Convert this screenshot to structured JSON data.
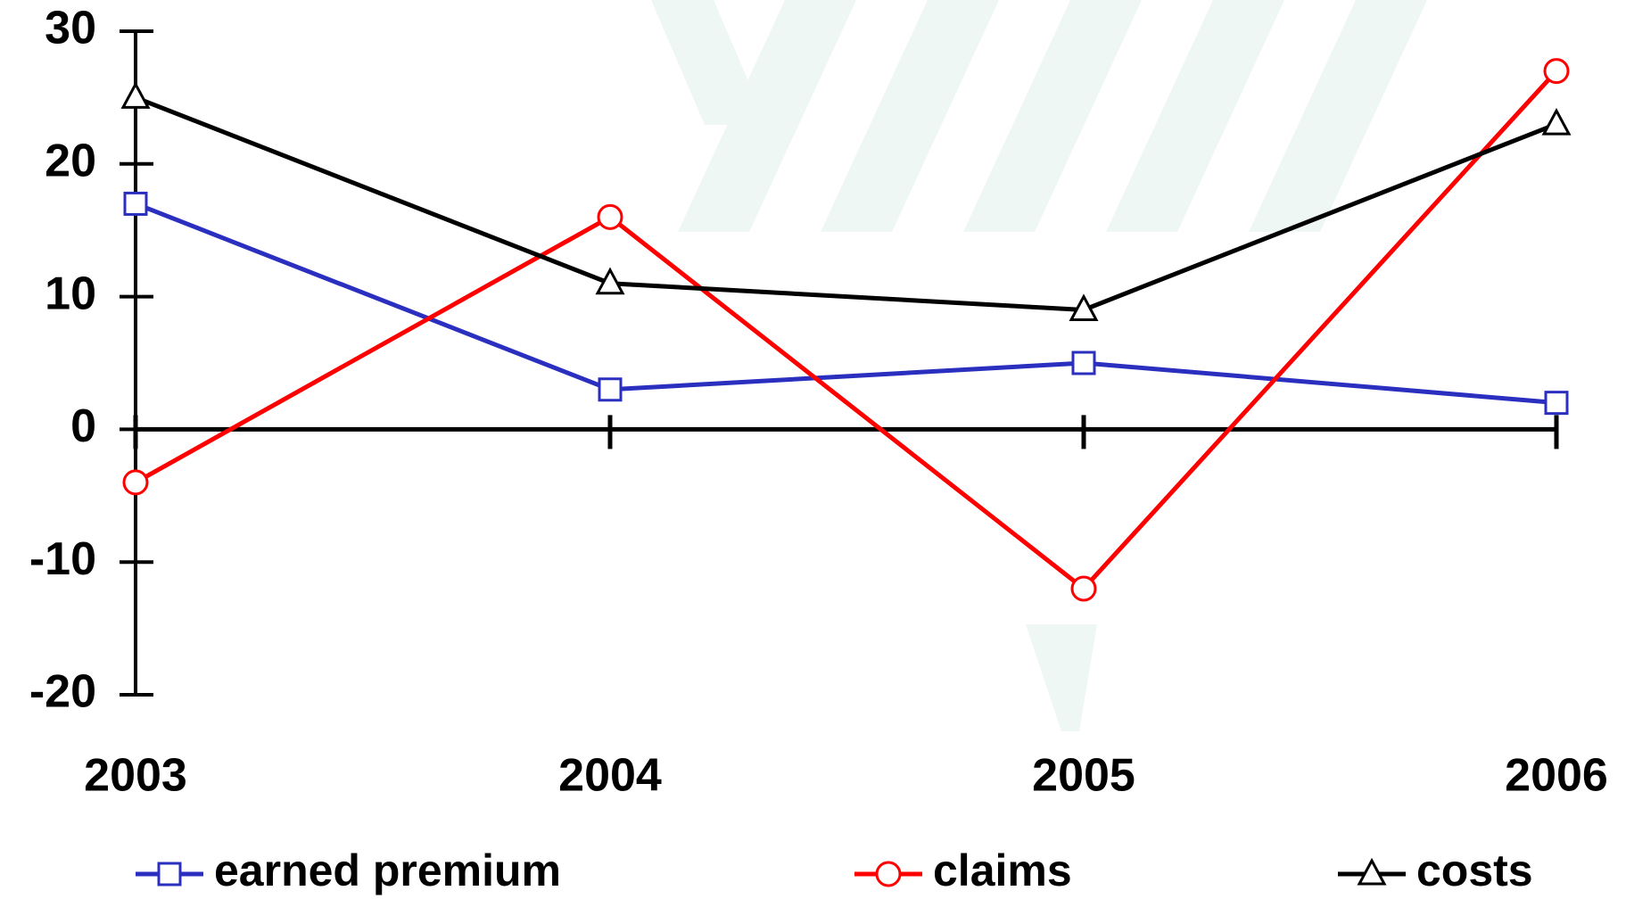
{
  "chart_data": {
    "type": "line",
    "categories": [
      "2003",
      "2004",
      "2005",
      "2006"
    ],
    "series": [
      {
        "name": "earned premium",
        "color": "#2b2fbf",
        "marker": "square",
        "values": [
          17,
          3,
          5,
          2
        ]
      },
      {
        "name": "claims",
        "color": "#ff0000",
        "marker": "circle",
        "values": [
          -4,
          16,
          -12,
          27
        ]
      },
      {
        "name": "costs",
        "color": "#000000",
        "marker": "triangle",
        "values": [
          25,
          11,
          9,
          23
        ]
      }
    ],
    "ylim": [
      -20,
      30
    ],
    "yticks": [
      -20,
      -10,
      0,
      10,
      20,
      30
    ],
    "grid": false,
    "legend": "bottom"
  }
}
